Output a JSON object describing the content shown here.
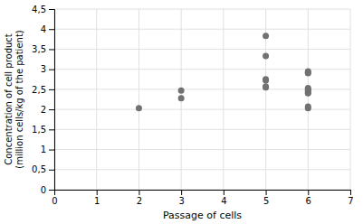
{
  "chart_data": {
    "type": "scatter",
    "x": [
      2,
      3,
      3,
      5,
      5,
      5,
      5,
      5,
      5,
      6,
      6,
      6,
      6,
      6,
      6,
      6,
      6,
      6,
      6
    ],
    "y": [
      2.03,
      2.28,
      2.47,
      2.55,
      2.57,
      2.72,
      2.75,
      3.33,
      3.83,
      2.03,
      2.07,
      2.4,
      2.43,
      2.47,
      2.5,
      2.53,
      2.9,
      2.92,
      2.95
    ],
    "xlabel": "Passage of cells",
    "ylabel": "Concentration of cell product\n(million cells/kg of the patient)",
    "xlim": [
      0,
      7
    ],
    "ylim": [
      0,
      4.5
    ],
    "xticks": [
      0,
      1,
      2,
      3,
      4,
      5,
      6,
      7
    ],
    "yticks": [
      0,
      {
        "value": 0.5,
        "label": "0,5"
      },
      1,
      {
        "value": 1.5,
        "label": "1,5"
      },
      2,
      {
        "value": 2.5,
        "label": "2,5"
      },
      3,
      {
        "value": 3.5,
        "label": "3,5"
      },
      4,
      {
        "value": 4.5,
        "label": "4,5"
      }
    ],
    "color": "#717171",
    "grid": true
  }
}
